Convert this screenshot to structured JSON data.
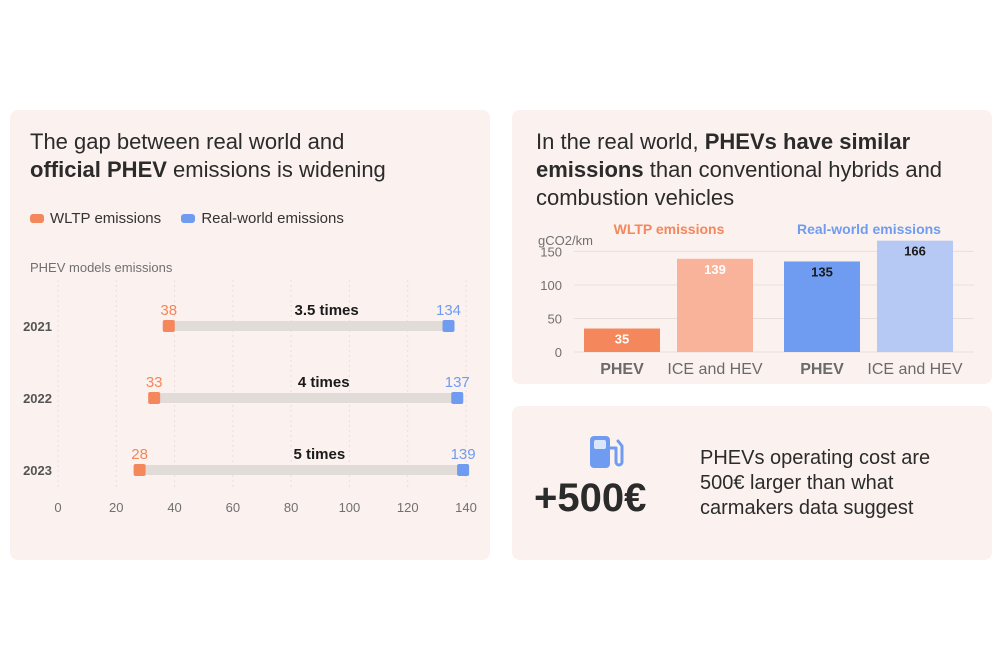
{
  "left_panel": {
    "title_line1": "The gap between real world and",
    "title_bold": "official PHEV",
    "title_rest": " emissions is widening",
    "legend": {
      "wltp": "WLTP emissions",
      "real": "Real-world emissions"
    },
    "subtitle": "PHEV models emissions"
  },
  "right_panel": {
    "title_pre": "In the real world, ",
    "title_bold1": "PHEVs have similar",
    "title_bold2": "emissions",
    "title_rest": " than conventional hybrids and combustion vehicles"
  },
  "cost_panel": {
    "icon": "fuel-pump-icon",
    "value": "+500€",
    "text": "PHEVs operating cost are 500€ larger than what carmakers data suggest"
  },
  "colors": {
    "wltp": "#f4875b",
    "wltp_light": "#f9b39a",
    "real": "#6f9cf0",
    "real_light": "#b6c9f5",
    "connector": "#e2dcd9",
    "panel_bg": "#fbf1ee"
  },
  "chart_data": [
    {
      "type": "dumbbell",
      "categories": [
        "2021",
        "2022",
        "2023"
      ],
      "series": [
        {
          "name": "WLTP emissions",
          "values": [
            38,
            33,
            28
          ]
        },
        {
          "name": "Real-world emissions",
          "values": [
            134,
            137,
            139
          ]
        }
      ],
      "annotations": [
        "3.5 times",
        "4 times",
        "5 times"
      ],
      "xticks": [
        0,
        20,
        40,
        60,
        80,
        100,
        120,
        140
      ],
      "xlim": [
        0,
        140
      ],
      "grid": true
    },
    {
      "type": "bar",
      "ylabel": "gCO2/km",
      "ylim": [
        0,
        170
      ],
      "yticks": [
        0,
        50,
        100,
        150
      ],
      "groups": [
        {
          "name": "WLTP emissions",
          "categories": [
            "PHEV",
            "ICE and HEV"
          ],
          "values": [
            35,
            139
          ]
        },
        {
          "name": "Real-world emissions",
          "categories": [
            "PHEV",
            "ICE and HEV"
          ],
          "values": [
            135,
            166
          ]
        }
      ],
      "grid": true
    }
  ]
}
